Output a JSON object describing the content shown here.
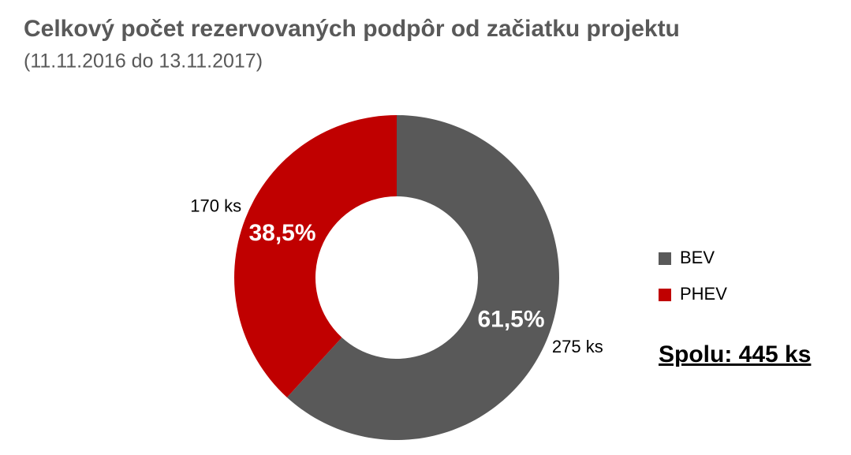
{
  "chart_data": {
    "type": "donut",
    "title": "Celkový počet rezervovaných podpôr od začiatku projektu",
    "subtitle": "(11.11.2016 do 13.11.2017)",
    "categories": [
      "BEV",
      "PHEV"
    ],
    "values": [
      275,
      170
    ],
    "value_labels": [
      "275 ks",
      "170 ks"
    ],
    "shares": [
      61.5,
      38.5
    ],
    "share_labels": [
      "61,5%",
      "38,5%"
    ],
    "colors": [
      "#595959",
      "#c00000"
    ],
    "legend": "right",
    "annotation": "Spolu: 445 ks"
  }
}
